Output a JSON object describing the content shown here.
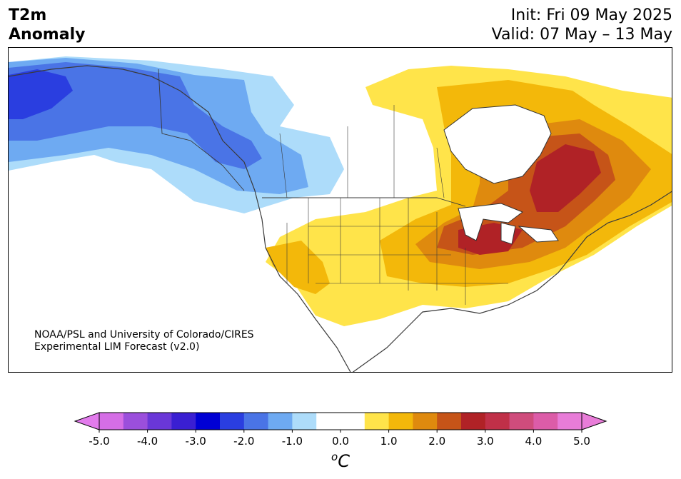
{
  "header": {
    "variable": "T2m",
    "kind": "Anomaly",
    "init": "Init: Fri 09 May 2025",
    "valid": "Valid: 07 May – 13 May"
  },
  "credit": {
    "line1": "NOAA/PSL and University of Colorado/CIRES",
    "line2": "Experimental LIM Forecast (v2.0)"
  },
  "colorbar": {
    "unit_base": "C",
    "unit_sup": "o",
    "tick_labels": [
      "-5.0",
      "-4.0",
      "-3.0",
      "-2.0",
      "-1.0",
      "0.0",
      "1.0",
      "2.0",
      "3.0",
      "4.0",
      "5.0"
    ],
    "colors": [
      "#d56ee6",
      "#9b4fdc",
      "#6a37d8",
      "#3a1fd2",
      "#0000d4",
      "#2a3ee0",
      "#4a74e6",
      "#6eaaf2",
      "#addcfa",
      "#ffffff",
      "#ffffff",
      "#ffe44a",
      "#f3b80a",
      "#df8a0e",
      "#c65418",
      "#b02226",
      "#c03048",
      "#cf4c7c",
      "#dc5ca8",
      "#e87cd8"
    ],
    "under_color": "#e27bec",
    "over_color": "#e87cd8"
  },
  "legend_regions": {
    "strong_cold": "Alaska",
    "strong_warm": "Great Lakes / Quebec"
  }
}
